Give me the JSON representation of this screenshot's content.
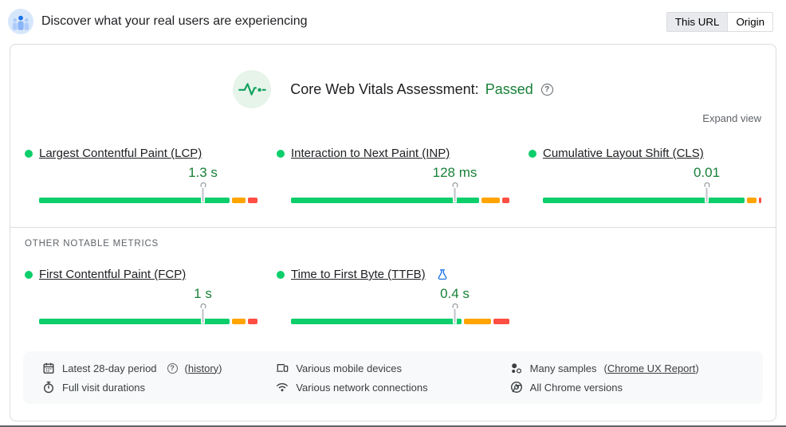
{
  "page": {
    "header": {
      "title": "Discover what your real users are experiencing",
      "toggle": {
        "this_url": "This URL",
        "origin": "Origin",
        "selected": "This URL"
      }
    },
    "assessment": {
      "label": "Core Web Vitals Assessment:",
      "status": "Passed",
      "expand_view": "Expand view"
    },
    "sections": {
      "other_metrics_label": "OTHER NOTABLE METRICS"
    }
  },
  "core_metrics": [
    {
      "label": "Largest Contentful Paint (LCP)",
      "value": "1.3 s",
      "rating": "good",
      "marker_pct": 75,
      "distribution": {
        "good": 88,
        "average": 7,
        "poor": 5
      }
    },
    {
      "label": "Interaction to Next Paint (INP)",
      "value": "128 ms",
      "rating": "good",
      "marker_pct": 75,
      "distribution": {
        "good": 87,
        "average": 9,
        "poor": 4
      }
    },
    {
      "label": "Cumulative Layout Shift (CLS)",
      "value": "0.01",
      "rating": "good",
      "marker_pct": 75,
      "distribution": {
        "good": 93,
        "average": 5,
        "poor": 2
      }
    }
  ],
  "other_metrics": [
    {
      "label": "First Contentful Paint (FCP)",
      "value": "1 s",
      "rating": "good",
      "marker_pct": 75,
      "distribution": {
        "good": 88,
        "average": 7,
        "poor": 5
      },
      "experimental": false
    },
    {
      "label": "Time to First Byte (TTFB)",
      "value": "0.4 s",
      "rating": "good",
      "marker_pct": 75,
      "distribution": {
        "good": 79,
        "average": 13,
        "poor": 8
      },
      "experimental": true
    }
  ],
  "footer": {
    "items": [
      {
        "icon": "calendar-icon",
        "text": "Latest 28-day period",
        "link_prefix": "(",
        "link": "history",
        "link_suffix": ")"
      },
      {
        "icon": "stopwatch-icon",
        "text": "Full visit durations"
      },
      {
        "icon": "devices-icon",
        "text": "Various mobile devices"
      },
      {
        "icon": "network-icon",
        "text": "Various network connections"
      },
      {
        "icon": "samples-icon",
        "text": "Many samples",
        "link_prefix": "(",
        "link": "Chrome UX Report",
        "link_suffix": ")"
      },
      {
        "icon": "chrome-icon",
        "text": "All Chrome versions"
      }
    ]
  },
  "colors": {
    "good": "#0cce6b",
    "average": "#ffa400",
    "poor": "#ff4e42",
    "passed_text": "#188038",
    "value_text": "#188038",
    "accent_blue": "#1a73e8"
  }
}
